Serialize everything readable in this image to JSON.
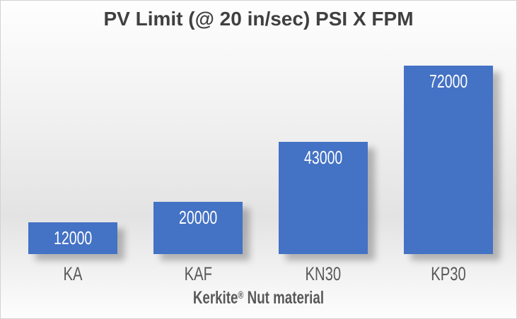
{
  "chart_data": {
    "type": "bar",
    "title": "PV Limit (@ 20 in/sec) PSI X FPM",
    "categories": [
      "KA",
      "KAF",
      "KN30",
      "KP30"
    ],
    "values": [
      12000,
      20000,
      43000,
      72000
    ],
    "xlabel": "Kerkite® Nut material",
    "xlabel_parts": {
      "brand": "Kerkite",
      "reg": "®",
      "rest": "Nut material"
    },
    "ylabel": "",
    "ylim": [
      0,
      77000
    ],
    "grid": false,
    "legend": false,
    "data_label_position": "inside-end",
    "colors": {
      "bar": "#4472C4",
      "data_label": "#FFFFFF",
      "category_label": "#595959",
      "title": "#404040",
      "axis_title": "#595959"
    }
  }
}
